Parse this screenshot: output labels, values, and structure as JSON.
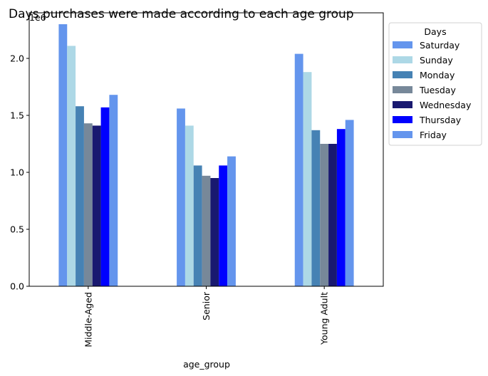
{
  "chart_data": {
    "type": "bar",
    "title": "Days purchases were made according to each age group",
    "xlabel": "age_group",
    "ylabel": "",
    "y_multiplier": "1e6",
    "categories": [
      "Middle-Aged",
      "Senior",
      "Young Adult"
    ],
    "ylim": [
      0,
      2.4
    ],
    "yticks": [
      "0.0",
      "0.5",
      "1.0",
      "1.5",
      "2.0"
    ],
    "legend_title": "Days",
    "legend_position": "outside-top-right",
    "series": [
      {
        "name": "Saturday",
        "color": "#6495ED",
        "values": [
          2.3,
          1.56,
          2.04
        ]
      },
      {
        "name": "Sunday",
        "color": "#ADD8E6",
        "values": [
          2.11,
          1.41,
          1.88
        ]
      },
      {
        "name": "Monday",
        "color": "#4682B4",
        "values": [
          1.58,
          1.06,
          1.37
        ]
      },
      {
        "name": "Tuesday",
        "color": "#778899",
        "values": [
          1.43,
          0.97,
          1.25
        ]
      },
      {
        "name": "Wednesday",
        "color": "#191970",
        "values": [
          1.41,
          0.95,
          1.25
        ]
      },
      {
        "name": "Thursday",
        "color": "#0000FF",
        "values": [
          1.57,
          1.06,
          1.38
        ]
      },
      {
        "name": "Friday",
        "color": "#6495ED",
        "values": [
          1.68,
          1.14,
          1.46
        ]
      }
    ]
  }
}
